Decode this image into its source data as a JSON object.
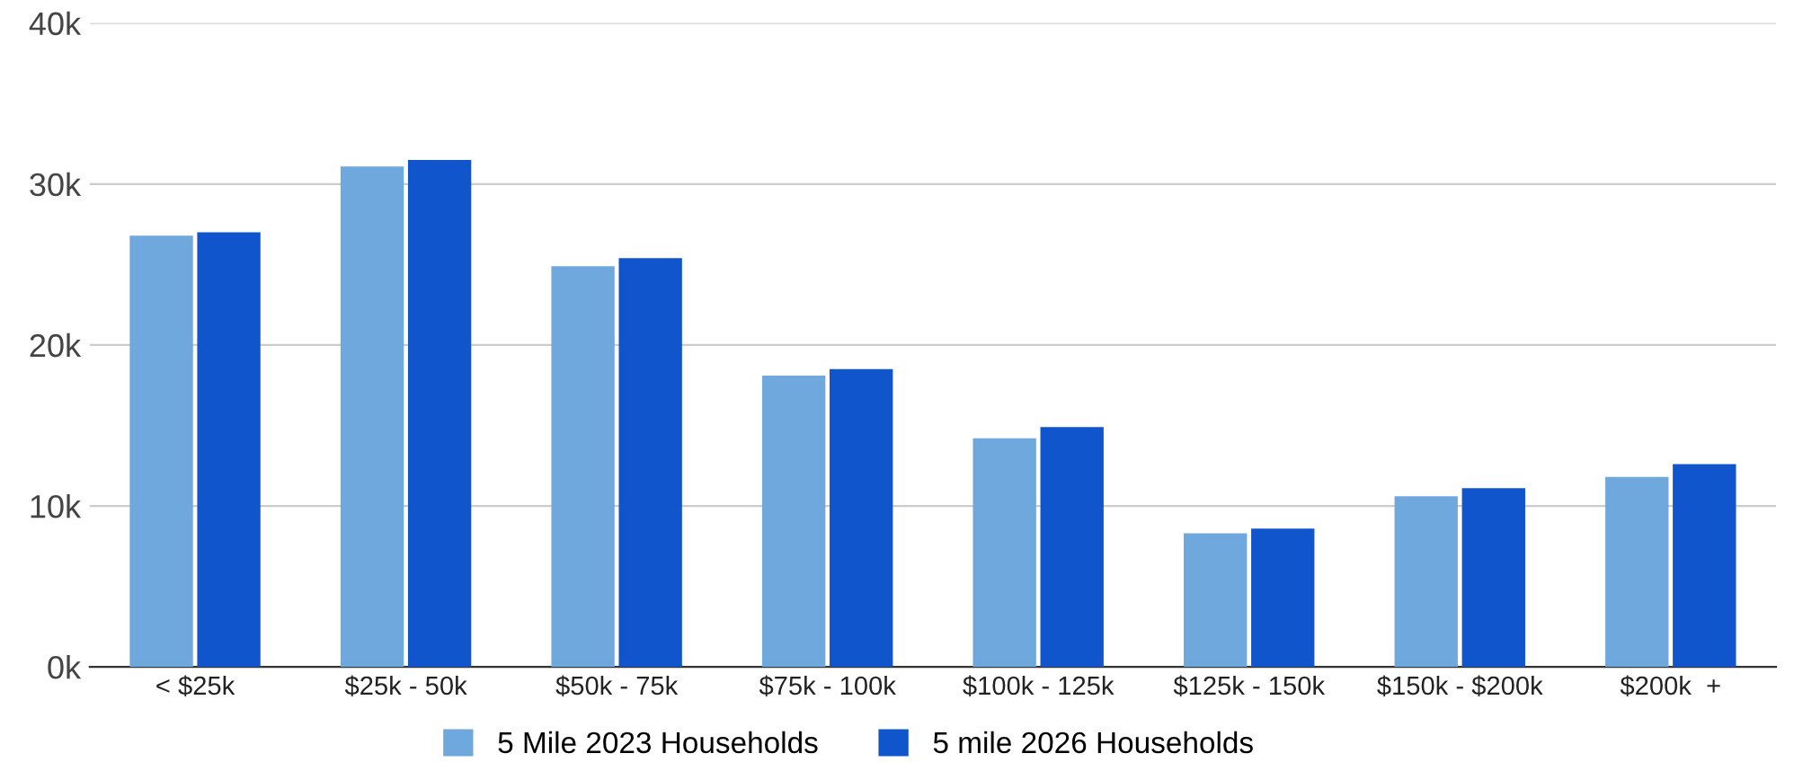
{
  "chart_data": {
    "type": "bar",
    "categories": [
      "< $25k",
      "$25k - 50k",
      "$50k - 75k",
      "$75k - 100k",
      "$100k - 125k",
      "$125k - 150k",
      "$150k - $200k",
      "$200k  +"
    ],
    "series": [
      {
        "name": "5 Mile 2023 Households",
        "color": "#6fa8dc",
        "values": [
          26800,
          31100,
          24900,
          18100,
          14200,
          8300,
          10600,
          11800
        ]
      },
      {
        "name": "5 mile 2026 Households",
        "color": "#1155cc",
        "values": [
          27000,
          31500,
          25400,
          18500,
          14900,
          8600,
          11100,
          12600
        ]
      }
    ],
    "ylim": [
      0,
      40000
    ],
    "yticks": [
      {
        "value": 0,
        "label": "0k"
      },
      {
        "value": 10000,
        "label": "10k"
      },
      {
        "value": 20000,
        "label": "20k"
      },
      {
        "value": 30000,
        "label": "30k"
      },
      {
        "value": 40000,
        "label": "40k"
      }
    ],
    "grid": "y",
    "legend": "bottom"
  }
}
